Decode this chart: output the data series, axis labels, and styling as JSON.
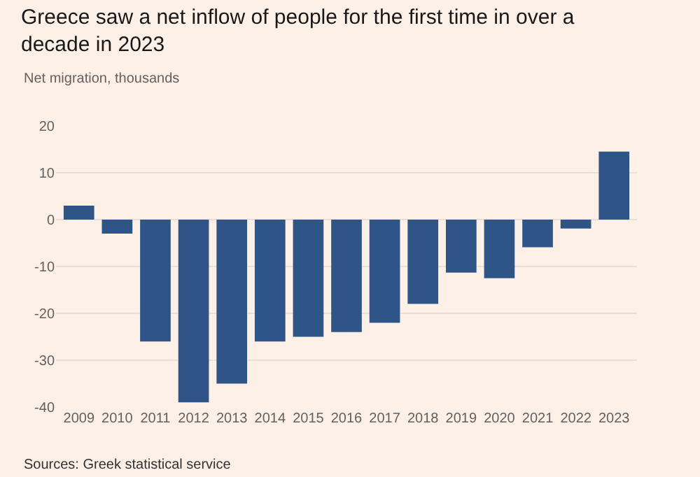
{
  "chart_data": {
    "type": "bar",
    "title": "Greece saw a net inflow of people for the first time in over a decade in 2023",
    "subtitle": "Net migration, thousands",
    "categories": [
      "2009",
      "2010",
      "2011",
      "2012",
      "2013",
      "2014",
      "2015",
      "2016",
      "2017",
      "2018",
      "2019",
      "2020",
      "2021",
      "2022",
      "2023"
    ],
    "values": [
      3,
      -3,
      -26,
      -39,
      -35,
      -26,
      -25,
      -24,
      -22,
      -18,
      -11.3,
      -12.5,
      -5.9,
      -1.9,
      14.5
    ],
    "color": "#2f5488",
    "ylim": [
      -40,
      20
    ],
    "yticks": [
      -40,
      -30,
      -20,
      -10,
      0,
      10,
      20
    ],
    "grid": "y",
    "annotations": [
      "Sources: Greek statistical service"
    ]
  }
}
